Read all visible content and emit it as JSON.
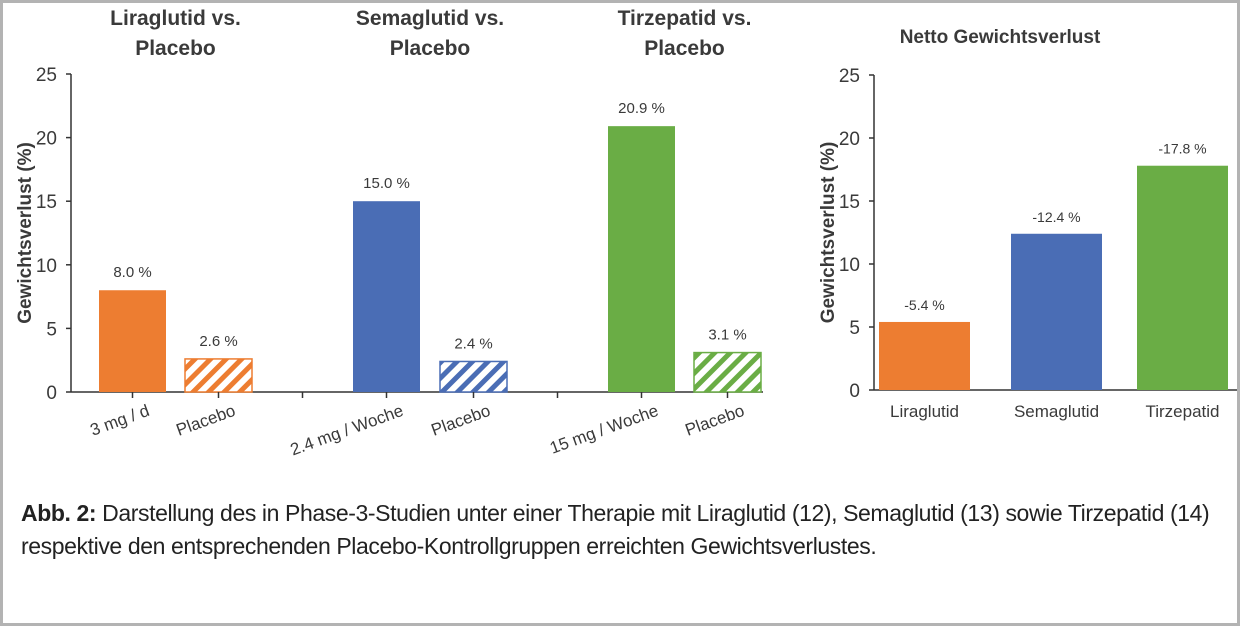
{
  "chart_data": [
    {
      "type": "bar",
      "title": "",
      "ylabel": "Gewichtsverlust (%)",
      "ylim": [
        0,
        25
      ],
      "yticks": [
        0,
        5,
        10,
        15,
        20,
        25
      ],
      "groups": [
        {
          "title": "Liraglutid vs. Placebo",
          "color": "#ed7d31",
          "bars": [
            {
              "label": "3 mg / d",
              "value": 8.0,
              "data_label": "8.0 %",
              "hatched": false
            },
            {
              "label": "Placebo",
              "value": 2.6,
              "data_label": "2.6 %",
              "hatched": true
            }
          ]
        },
        {
          "title": "Semaglutid vs. Placebo",
          "color": "#4a6db5",
          "bars": [
            {
              "label": "2.4 mg / Woche",
              "value": 15.0,
              "data_label": "15.0 %",
              "hatched": false
            },
            {
              "label": "Placebo",
              "value": 2.4,
              "data_label": "2.4 %",
              "hatched": true
            }
          ]
        },
        {
          "title": "Tirzepatid vs. Placebo",
          "color": "#6aad45",
          "bars": [
            {
              "label": "15 mg / Woche",
              "value": 20.9,
              "data_label": "20.9 %",
              "hatched": false
            },
            {
              "label": "Placebo",
              "value": 3.1,
              "data_label": "3.1 %",
              "hatched": true
            }
          ]
        }
      ]
    },
    {
      "type": "bar",
      "title": "Netto Gewichtsverlust",
      "ylabel": "Gewichtsverlust (%)",
      "ylim": [
        0,
        25
      ],
      "yticks": [
        0,
        5,
        10,
        15,
        20,
        25
      ],
      "categories": [
        "Liraglutid",
        "Semaglutid",
        "Tirzepatid"
      ],
      "values": [
        5.4,
        12.4,
        17.8
      ],
      "data_labels": [
        "-5.4 %",
        "-12.4 %",
        "-17.8 %"
      ],
      "colors": [
        "#ed7d31",
        "#4a6db5",
        "#6aad45"
      ]
    }
  ],
  "caption": {
    "label": "Abb. 2:",
    "text": " Darstellung des in Phase-3-Studien unter einer Therapie mit Liraglutid (12), Semaglutid (13) sowie Tirzepatid (14) respektive den entsprechenden Placebo-Kontrollgruppen erreichten Gewichtsverlustes."
  }
}
